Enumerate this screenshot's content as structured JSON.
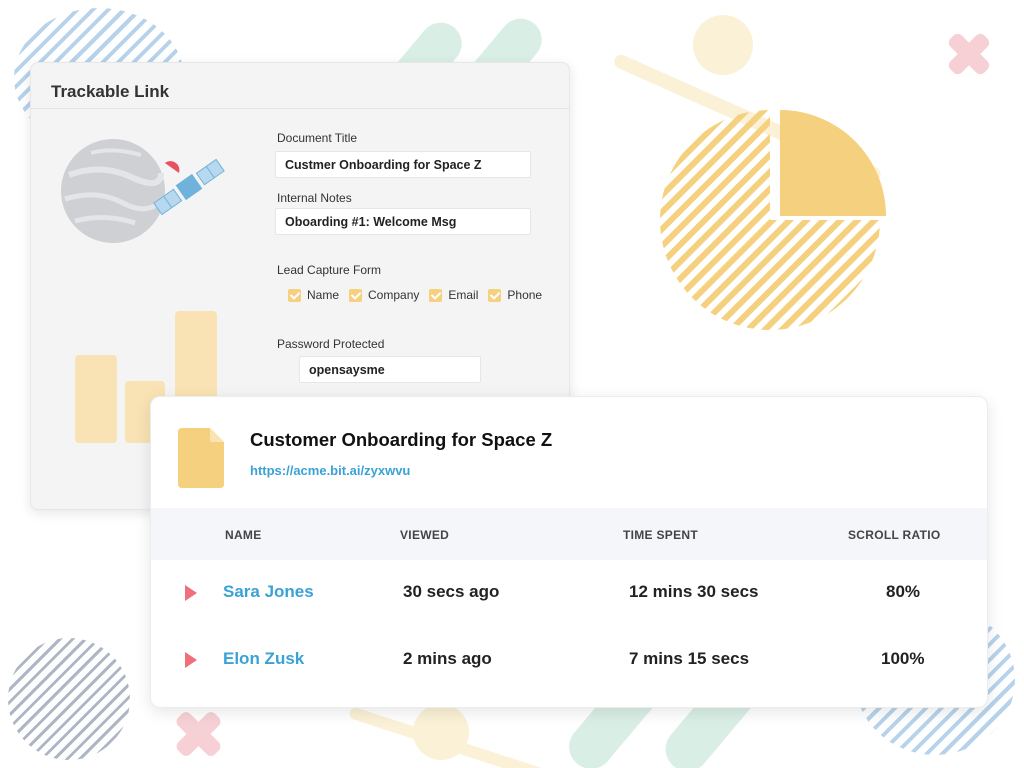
{
  "trackable_link": {
    "title": "Trackable Link",
    "document_title_label": "Document Title",
    "document_title_value": "Custmer Onboarding for Space Z",
    "internal_notes_label": "Internal Notes",
    "internal_notes_value": "Oboarding  #1: Welcome Msg",
    "lead_capture_label": "Lead Capture Form",
    "lead_capture_options": [
      {
        "label": "Name",
        "checked": true
      },
      {
        "label": "Company",
        "checked": true
      },
      {
        "label": "Email",
        "checked": true
      },
      {
        "label": "Phone",
        "checked": true
      }
    ],
    "password_label": "Password Protected",
    "password_value": "opensaysme"
  },
  "analytics": {
    "doc_title": "Customer Onboarding for Space Z",
    "doc_link": "https://acme.bit.ai/zyxwvu",
    "columns": [
      "NAME",
      "VIEWED",
      "TIME SPENT",
      "SCROLL RATIO"
    ],
    "rows": [
      {
        "name": "Sara Jones",
        "viewed": "30 secs ago",
        "time_spent": "12 mins 30 secs",
        "scroll_ratio": "80%"
      },
      {
        "name": "Elon Zusk",
        "viewed": "2 mins ago",
        "time_spent": "7 mins 15 secs",
        "scroll_ratio": "100%"
      }
    ]
  },
  "colors": {
    "accent_blue": "#3aa2d6",
    "accent_yellow": "#f5d07e",
    "play_pink": "#ef6f7c"
  },
  "icons": {
    "doc": "document-icon",
    "row_play": "play-triangle-icon",
    "checkbox": "checkmark-icon"
  }
}
